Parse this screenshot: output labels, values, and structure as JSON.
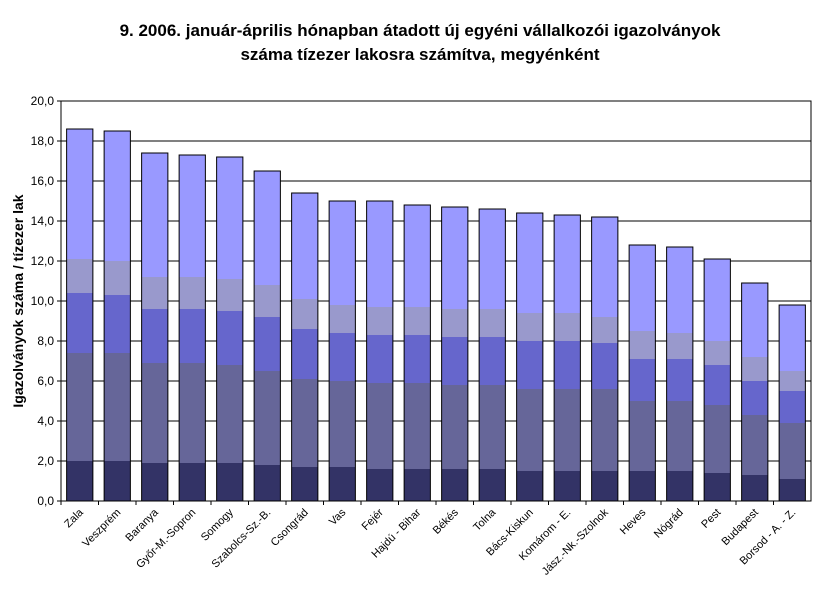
{
  "chart_data": {
    "type": "bar",
    "stacked": true,
    "title": [
      "9.   2006. január-április hónapban átadott új egyéni vállalkozói  igazolványok",
      "száma tízezer lakosra számítva, megyénként"
    ],
    "ylabel": "Igazolványok száma / tízezer lak",
    "xlabel": "",
    "ylim": [
      0,
      20
    ],
    "ytick_step": 2,
    "ytick_labels": [
      "0,0",
      "2,0",
      "4,0",
      "6,0",
      "8,0",
      "10,0",
      "12,0",
      "14,0",
      "16,0",
      "18,0",
      "20,0"
    ],
    "grid": true,
    "legend": "none",
    "categories": [
      "Zala",
      "Veszprém",
      "Baranya",
      "Győr-M.-Sopron",
      "Somogy",
      "Szabolcs-Sz.-B.",
      "Csongrád",
      "Vas",
      "Fejér",
      "Hajdú - Bihar",
      "Békés",
      "Tolna",
      "Bács-Kiskun",
      "Komárom - E.",
      "Jász.-Nk.-Szolnok",
      "Heves",
      "Nógrád",
      "Pest",
      "Budapest",
      "Borsod - A. - Z."
    ],
    "totals": [
      18.6,
      18.5,
      17.4,
      17.3,
      17.2,
      16.5,
      15.4,
      15.0,
      15.0,
      14.8,
      14.7,
      14.6,
      14.4,
      14.3,
      14.2,
      12.8,
      12.7,
      12.1,
      10.9,
      9.8
    ],
    "series": [
      {
        "values": [
          2.0,
          2.0,
          1.9,
          1.9,
          1.9,
          1.8,
          1.7,
          1.7,
          1.6,
          1.6,
          1.6,
          1.6,
          1.5,
          1.5,
          1.5,
          1.5,
          1.5,
          1.4,
          1.3,
          1.1
        ]
      },
      {
        "values": [
          5.4,
          5.4,
          5.0,
          5.0,
          4.9,
          4.7,
          4.4,
          4.3,
          4.3,
          4.3,
          4.2,
          4.2,
          4.1,
          4.1,
          4.1,
          3.5,
          3.5,
          3.4,
          3.0,
          2.8
        ]
      },
      {
        "values": [
          3.0,
          2.9,
          2.7,
          2.7,
          2.7,
          2.7,
          2.5,
          2.4,
          2.4,
          2.4,
          2.4,
          2.4,
          2.4,
          2.4,
          2.3,
          2.1,
          2.1,
          2.0,
          1.7,
          1.6
        ]
      },
      {
        "values": [
          1.7,
          1.7,
          1.6,
          1.6,
          1.6,
          1.6,
          1.5,
          1.4,
          1.4,
          1.4,
          1.4,
          1.4,
          1.4,
          1.4,
          1.3,
          1.4,
          1.3,
          1.2,
          1.2,
          1.0
        ]
      },
      {
        "values": [
          6.5,
          6.5,
          6.2,
          6.1,
          6.1,
          5.7,
          5.3,
          5.2,
          5.3,
          5.1,
          5.1,
          5.0,
          5.0,
          4.9,
          5.0,
          4.3,
          4.3,
          4.1,
          3.7,
          3.3
        ]
      }
    ],
    "colors": [
      "#333366",
      "#666699",
      "#6666cc",
      "#9999cc",
      "#9999ff"
    ],
    "grid_color": "#000000",
    "border_color": "#000000"
  }
}
